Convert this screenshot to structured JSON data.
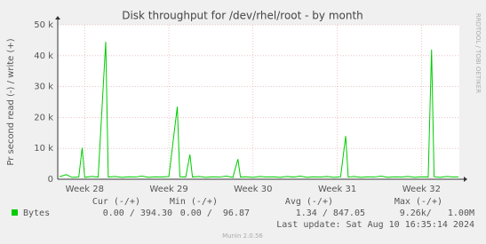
{
  "chart_data": {
    "type": "line",
    "title": "Disk throughput for /dev/rhel/root - by month",
    "y_label": "Pr second read (-) / write (+)",
    "watermark": "RRDTOOL / TOBI OETIKER",
    "x": [
      27.7,
      27.78,
      27.85,
      27.93,
      27.97,
      28.0,
      28.08,
      28.16,
      28.25,
      28.28,
      28.36,
      28.44,
      28.52,
      28.6,
      28.68,
      28.76,
      28.84,
      28.92,
      29.0,
      29.1,
      29.13,
      29.2,
      29.25,
      29.28,
      29.36,
      29.44,
      29.52,
      29.6,
      29.68,
      29.76,
      29.82,
      29.85,
      29.92,
      30.0,
      30.08,
      30.16,
      30.24,
      30.32,
      30.4,
      30.48,
      30.56,
      30.64,
      30.72,
      30.8,
      30.88,
      30.96,
      31.04,
      31.1,
      31.13,
      31.2,
      31.28,
      31.36,
      31.44,
      31.52,
      31.6,
      31.68,
      31.76,
      31.84,
      31.92,
      32.0,
      32.08,
      32.12,
      32.15,
      32.22,
      32.3,
      32.38,
      32.44
    ],
    "series": [
      {
        "name": "Bytes",
        "color": "#00cc00",
        "values": [
          800,
          1500,
          600,
          700,
          10200,
          600,
          900,
          700,
          44500,
          700,
          900,
          600,
          800,
          700,
          1000,
          600,
          800,
          700,
          900,
          23500,
          800,
          700,
          8000,
          700,
          900,
          600,
          800,
          700,
          1000,
          600,
          6500,
          700,
          800,
          600,
          900,
          700,
          800,
          600,
          900,
          700,
          1000,
          600,
          800,
          700,
          900,
          600,
          800,
          14000,
          700,
          900,
          600,
          800,
          700,
          1000,
          600,
          800,
          700,
          900,
          600,
          800,
          700,
          42000,
          800,
          600,
          900,
          700,
          800
        ]
      }
    ],
    "xlim": [
      27.68,
      32.45
    ],
    "xticks": [
      {
        "value": 28,
        "label": "Week 28"
      },
      {
        "value": 29,
        "label": "Week 29"
      },
      {
        "value": 30,
        "label": "Week 30"
      },
      {
        "value": 31,
        "label": "Week 31"
      },
      {
        "value": 32,
        "label": "Week 32"
      }
    ],
    "ylim": [
      0,
      50000
    ],
    "yticks": [
      0,
      {
        "value": 10000,
        "label": "10 k"
      },
      {
        "value": 20000,
        "label": "20 k"
      },
      {
        "value": 30000,
        "label": "30 k"
      },
      {
        "value": 40000,
        "label": "40 k"
      },
      {
        "value": 50000,
        "label": "50 k"
      }
    ],
    "grid": true,
    "stats_columns": [
      "Cur (-/+)",
      "Min (-/+)",
      "Avg (-/+)",
      "Max (-/+)"
    ],
    "stats": [
      [
        "0.00 / 394.30",
        "0.00 /  96.87",
        "1.34 / 847.05",
        "9.26k/   1.00M"
      ]
    ],
    "last_update": "Last update: Sat Aug 10 16:35:14 2024",
    "credit": "Munin 2.0.56"
  }
}
